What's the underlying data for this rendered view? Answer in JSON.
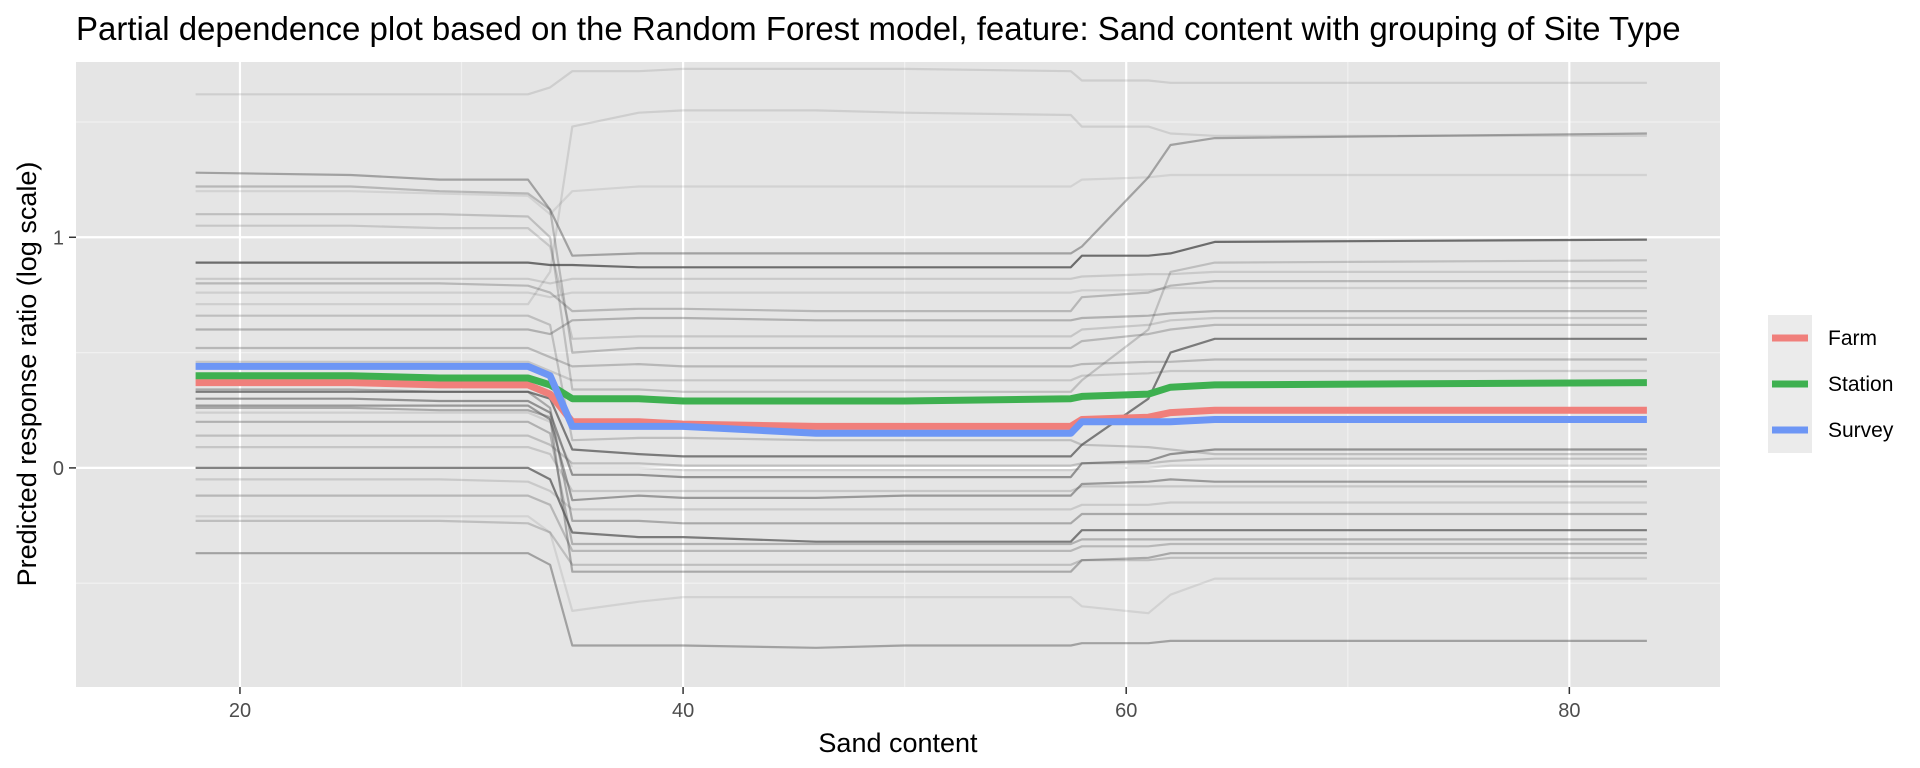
{
  "chart_data": {
    "type": "line",
    "title": "Partial dependence plot based on the Random Forest model, feature: Sand content with grouping of Site Type",
    "xlabel": "Sand content",
    "ylabel": "Predicted response ratio (log scale)",
    "xlim": [
      12.6,
      86.8
    ],
    "ylim": [
      -0.95,
      1.76
    ],
    "x_ticks": [
      20,
      40,
      60,
      80
    ],
    "x_tick_labels": [
      "20",
      "40",
      "60",
      "80"
    ],
    "y_ticks": [
      0,
      1
    ],
    "y_tick_labels": [
      "0",
      "1"
    ],
    "grid": true,
    "legend_position": "right",
    "background_colors": {
      "panel": "#E5E5E5",
      "grid_major": "#FFFFFF",
      "grid_minor": "#F0F0F0",
      "legend_key": "#EBEBEB"
    },
    "x": [
      18,
      25,
      29,
      33,
      34,
      35,
      38,
      40,
      46,
      50,
      57.5,
      58,
      61,
      62,
      64,
      83.5
    ],
    "series": [
      {
        "name": "Farm",
        "color": "#F07F7B",
        "values": [
          0.37,
          0.37,
          0.36,
          0.36,
          0.32,
          0.2,
          0.2,
          0.19,
          0.18,
          0.18,
          0.18,
          0.21,
          0.22,
          0.24,
          0.25,
          0.25
        ]
      },
      {
        "name": "Station",
        "color": "#3EB050",
        "values": [
          0.4,
          0.4,
          0.39,
          0.39,
          0.36,
          0.3,
          0.3,
          0.29,
          0.29,
          0.29,
          0.3,
          0.31,
          0.32,
          0.35,
          0.36,
          0.37
        ]
      },
      {
        "name": "Survey",
        "color": "#6D96F5",
        "values": [
          0.44,
          0.44,
          0.44,
          0.44,
          0.4,
          0.18,
          0.18,
          0.18,
          0.15,
          0.15,
          0.15,
          0.2,
          0.2,
          0.2,
          0.21,
          0.21
        ]
      }
    ],
    "individual_lines": {
      "color": "#4D4D4D",
      "x": [
        18,
        25,
        29,
        33,
        34,
        35,
        38,
        40,
        46,
        50,
        57.5,
        58,
        61,
        62,
        64,
        83.5
      ],
      "lines": [
        {
          "opacity": 0.8,
          "values": [
            0.89,
            0.89,
            0.89,
            0.89,
            0.88,
            0.88,
            0.87,
            0.87,
            0.87,
            0.87,
            0.87,
            0.92,
            0.92,
            0.93,
            0.98,
            0.99
          ]
        },
        {
          "opacity": 0.7,
          "values": [
            0.33,
            0.33,
            0.33,
            0.33,
            0.3,
            0.08,
            0.06,
            0.05,
            0.05,
            0.05,
            0.05,
            0.1,
            0.3,
            0.5,
            0.56,
            0.56
          ]
        },
        {
          "opacity": 0.7,
          "values": [
            0.0,
            0.0,
            0.0,
            0.0,
            -0.05,
            -0.28,
            -0.3,
            -0.3,
            -0.32,
            -0.32,
            -0.32,
            -0.27,
            -0.27,
            -0.27,
            -0.27,
            -0.27
          ]
        },
        {
          "opacity": 0.55,
          "values": [
            0.3,
            0.3,
            0.29,
            0.29,
            0.24,
            -0.03,
            -0.03,
            -0.04,
            -0.04,
            -0.04,
            -0.04,
            0.02,
            0.03,
            0.06,
            0.08,
            0.08
          ]
        },
        {
          "opacity": 0.5,
          "values": [
            0.27,
            0.27,
            0.27,
            0.27,
            0.21,
            -0.14,
            -0.12,
            -0.13,
            -0.13,
            -0.12,
            -0.12,
            -0.07,
            -0.06,
            -0.05,
            -0.06,
            -0.06
          ]
        },
        {
          "opacity": 0.45,
          "values": [
            -0.37,
            -0.37,
            -0.37,
            -0.37,
            -0.42,
            -0.77,
            -0.77,
            -0.77,
            -0.78,
            -0.77,
            -0.77,
            -0.76,
            -0.76,
            -0.75,
            -0.75,
            -0.75
          ]
        },
        {
          "opacity": 0.45,
          "values": [
            1.28,
            1.27,
            1.25,
            1.25,
            1.12,
            0.92,
            0.93,
            0.93,
            0.93,
            0.93,
            0.93,
            0.96,
            1.26,
            1.4,
            1.43,
            1.45
          ]
        },
        {
          "opacity": 0.4,
          "values": [
            0.34,
            0.34,
            0.33,
            0.33,
            0.26,
            -0.23,
            -0.23,
            -0.24,
            -0.24,
            -0.24,
            -0.24,
            -0.2,
            -0.2,
            -0.2,
            -0.2,
            -0.2
          ]
        },
        {
          "opacity": 0.4,
          "values": [
            0.26,
            0.26,
            0.25,
            0.25,
            0.22,
            -0.45,
            -0.45,
            -0.45,
            -0.45,
            -0.45,
            -0.45,
            -0.4,
            -0.39,
            -0.37,
            -0.37,
            -0.37
          ]
        },
        {
          "opacity": 0.35,
          "values": [
            0.2,
            0.2,
            0.2,
            0.2,
            0.15,
            -0.33,
            -0.33,
            -0.33,
            -0.33,
            -0.33,
            -0.33,
            -0.31,
            -0.31,
            -0.31,
            -0.31,
            -0.31
          ]
        },
        {
          "opacity": 0.35,
          "values": [
            0.6,
            0.6,
            0.6,
            0.6,
            0.58,
            0.64,
            0.65,
            0.65,
            0.64,
            0.64,
            0.64,
            0.65,
            0.66,
            0.67,
            0.68,
            0.68
          ]
        },
        {
          "opacity": 0.3,
          "values": [
            0.8,
            0.8,
            0.8,
            0.79,
            0.76,
            0.68,
            0.69,
            0.69,
            0.68,
            0.68,
            0.68,
            0.74,
            0.76,
            0.79,
            0.81,
            0.81
          ]
        },
        {
          "opacity": 0.3,
          "values": [
            1.22,
            1.22,
            1.2,
            1.19,
            1.12,
            0.5,
            0.52,
            0.52,
            0.52,
            0.52,
            0.52,
            0.55,
            0.58,
            0.6,
            0.62,
            0.62
          ]
        },
        {
          "opacity": 0.3,
          "values": [
            0.52,
            0.52,
            0.52,
            0.52,
            0.48,
            0.44,
            0.45,
            0.44,
            0.44,
            0.44,
            0.44,
            0.45,
            0.46,
            0.46,
            0.47,
            0.47
          ]
        },
        {
          "opacity": 0.3,
          "values": [
            -0.12,
            -0.12,
            -0.12,
            -0.12,
            -0.16,
            -0.36,
            -0.36,
            -0.36,
            -0.36,
            -0.36,
            -0.36,
            -0.34,
            -0.34,
            -0.33,
            -0.33,
            -0.33
          ]
        },
        {
          "opacity": 0.25,
          "values": [
            1.1,
            1.1,
            1.1,
            1.09,
            1.0,
            0.34,
            0.34,
            0.33,
            0.33,
            0.33,
            0.33,
            0.38,
            0.6,
            0.85,
            0.89,
            0.9
          ]
        },
        {
          "opacity": 0.25,
          "values": [
            0.66,
            0.66,
            0.66,
            0.66,
            0.62,
            0.12,
            0.13,
            0.13,
            0.12,
            0.12,
            0.12,
            0.1,
            0.09,
            0.08,
            0.06,
            0.06
          ]
        },
        {
          "opacity": 0.25,
          "values": [
            0.14,
            0.14,
            0.14,
            0.14,
            0.1,
            0.02,
            0.02,
            0.01,
            0.01,
            0.01,
            0.01,
            0.02,
            0.02,
            0.03,
            0.04,
            0.04
          ]
        },
        {
          "opacity": 0.25,
          "values": [
            -0.23,
            -0.23,
            -0.23,
            -0.24,
            -0.28,
            -0.42,
            -0.42,
            -0.42,
            -0.42,
            -0.42,
            -0.42,
            -0.4,
            -0.4,
            -0.39,
            -0.39,
            -0.39
          ]
        },
        {
          "opacity": 0.2,
          "values": [
            1.05,
            1.05,
            1.04,
            1.04,
            0.96,
            0.56,
            0.57,
            0.57,
            0.57,
            0.57,
            0.57,
            0.6,
            0.62,
            0.64,
            0.65,
            0.65
          ]
        },
        {
          "opacity": 0.2,
          "values": [
            0.46,
            0.46,
            0.46,
            0.46,
            0.42,
            0.38,
            0.38,
            0.38,
            0.38,
            0.38,
            0.38,
            0.4,
            0.41,
            0.42,
            0.42,
            0.42
          ]
        },
        {
          "opacity": 0.2,
          "values": [
            0.09,
            0.09,
            0.09,
            0.09,
            0.06,
            -0.1,
            -0.1,
            -0.1,
            -0.1,
            -0.1,
            -0.1,
            -0.08,
            -0.08,
            -0.08,
            -0.08,
            -0.08
          ]
        },
        {
          "opacity": 0.18,
          "values": [
            0.82,
            0.82,
            0.82,
            0.82,
            0.8,
            0.82,
            0.82,
            0.82,
            0.82,
            0.82,
            0.82,
            0.83,
            0.84,
            0.84,
            0.85,
            0.85
          ]
        },
        {
          "opacity": 0.18,
          "values": [
            -0.05,
            -0.05,
            -0.05,
            -0.06,
            -0.1,
            -0.18,
            -0.18,
            -0.18,
            -0.18,
            -0.18,
            -0.18,
            -0.16,
            -0.16,
            -0.15,
            -0.15,
            -0.15
          ]
        },
        {
          "opacity": 0.15,
          "values": [
            1.62,
            1.62,
            1.62,
            1.62,
            1.65,
            1.72,
            1.72,
            1.73,
            1.73,
            1.73,
            1.72,
            1.68,
            1.68,
            1.67,
            1.67,
            1.67
          ]
        },
        {
          "opacity": 0.15,
          "values": [
            0.71,
            0.71,
            0.71,
            0.71,
            0.85,
            1.48,
            1.54,
            1.55,
            1.55,
            1.54,
            1.53,
            1.48,
            1.48,
            1.45,
            1.44,
            1.44
          ]
        },
        {
          "opacity": 0.15,
          "values": [
            0.76,
            0.76,
            0.76,
            0.76,
            0.74,
            0.76,
            0.76,
            0.76,
            0.76,
            0.76,
            0.76,
            0.77,
            0.77,
            0.78,
            0.78,
            0.78
          ]
        },
        {
          "opacity": 0.15,
          "values": [
            0.24,
            0.24,
            0.24,
            0.24,
            0.2,
            0.0,
            0.0,
            -0.01,
            -0.01,
            -0.01,
            -0.01,
            0.0,
            0.0,
            0.01,
            0.01,
            0.01
          ]
        },
        {
          "opacity": 0.12,
          "values": [
            -0.21,
            -0.21,
            -0.21,
            -0.21,
            -0.28,
            -0.62,
            -0.58,
            -0.56,
            -0.56,
            -0.56,
            -0.56,
            -0.6,
            -0.63,
            -0.55,
            -0.48,
            -0.48
          ]
        },
        {
          "opacity": 0.12,
          "values": [
            1.2,
            1.2,
            1.19,
            1.18,
            1.1,
            1.2,
            1.22,
            1.22,
            1.22,
            1.22,
            1.22,
            1.25,
            1.26,
            1.27,
            1.27,
            1.27
          ]
        }
      ]
    }
  }
}
